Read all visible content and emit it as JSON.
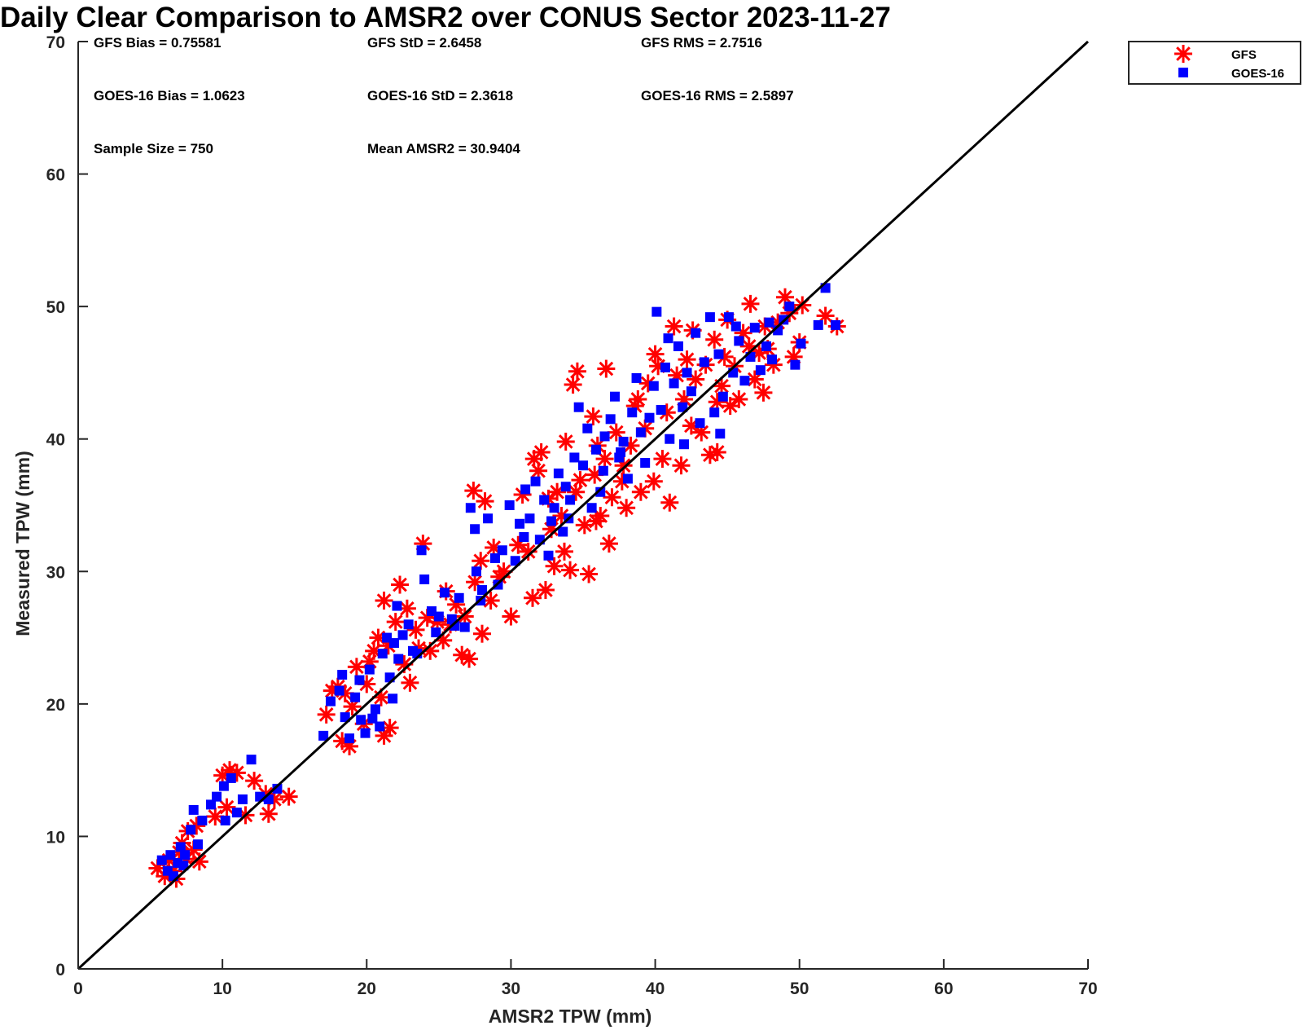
{
  "chart_data": {
    "type": "scatter",
    "title": "Daily Clear Comparison to AMSR2 over CONUS Sector 2023-11-27",
    "xlabel": "AMSR2 TPW (mm)",
    "ylabel": "Measured TPW (mm)",
    "xlim": [
      0,
      70
    ],
    "ylim": [
      0,
      70
    ],
    "xticks": [
      "0",
      "10",
      "20",
      "30",
      "40",
      "50",
      "60",
      "70"
    ],
    "yticks": [
      "0",
      "10",
      "20",
      "30",
      "40",
      "50",
      "60",
      "70"
    ],
    "grid": false,
    "reference_line": {
      "x": [
        0,
        70
      ],
      "y": [
        0,
        70
      ],
      "color": "#000000"
    },
    "legend": {
      "placement": "outside-top-right",
      "entries": [
        {
          "label": "GFS",
          "marker": "asterisk",
          "color": "#ff0000"
        },
        {
          "label": "GOES-16",
          "marker": "square",
          "color": "#0000ff"
        }
      ]
    },
    "stats": [
      [
        "GFS Bias = 0.75581",
        "GFS StD = 2.6458",
        "GFS RMS = 2.7516"
      ],
      [
        "GOES-16 Bias = 1.0623",
        "GOES-16 StD = 2.3618",
        "GOES-16 RMS = 2.5897"
      ],
      [
        "Sample Size = 750",
        "Mean AMSR2 = 30.9404"
      ]
    ],
    "series": [
      {
        "name": "GFS",
        "color": "#ff0000",
        "marker": "asterisk",
        "points": [
          [
            5.5,
            7.6
          ],
          [
            6.0,
            7.0
          ],
          [
            6.3,
            8.2
          ],
          [
            6.6,
            7.4
          ],
          [
            7.0,
            8.8
          ],
          [
            7.2,
            9.5
          ],
          [
            7.5,
            8.3
          ],
          [
            8.0,
            9.0
          ],
          [
            8.4,
            8.1
          ],
          [
            6.8,
            6.8
          ],
          [
            7.6,
            10.4
          ],
          [
            8.2,
            10.8
          ],
          [
            9.5,
            11.5
          ],
          [
            10.0,
            14.6
          ],
          [
            10.5,
            15.0
          ],
          [
            11.0,
            14.8
          ],
          [
            10.3,
            12.2
          ],
          [
            11.6,
            11.6
          ],
          [
            12.2,
            14.2
          ],
          [
            13.2,
            11.7
          ],
          [
            13.6,
            12.8
          ],
          [
            14.6,
            13.0
          ],
          [
            13.0,
            13.2
          ],
          [
            17.2,
            19.2
          ],
          [
            17.6,
            21.0
          ],
          [
            18.3,
            17.2
          ],
          [
            18.8,
            16.8
          ],
          [
            19.0,
            19.8
          ],
          [
            19.3,
            22.8
          ],
          [
            20.0,
            21.5
          ],
          [
            20.5,
            24.0
          ],
          [
            20.8,
            25.0
          ],
          [
            21.2,
            17.6
          ],
          [
            21.6,
            18.2
          ],
          [
            21.0,
            20.5
          ],
          [
            21.5,
            24.4
          ],
          [
            22.0,
            26.2
          ],
          [
            22.3,
            29.0
          ],
          [
            21.2,
            27.8
          ],
          [
            22.6,
            23.0
          ],
          [
            23.0,
            21.6
          ],
          [
            23.4,
            25.6
          ],
          [
            23.9,
            32.1
          ],
          [
            24.4,
            24.0
          ],
          [
            24.9,
            26.2
          ],
          [
            25.3,
            24.8
          ],
          [
            25.8,
            26.0
          ],
          [
            26.2,
            27.5
          ],
          [
            26.6,
            23.7
          ],
          [
            27.1,
            23.4
          ],
          [
            27.4,
            36.1
          ],
          [
            28.2,
            35.3
          ],
          [
            28.0,
            25.3
          ],
          [
            27.9,
            30.8
          ],
          [
            28.6,
            27.8
          ],
          [
            29.2,
            29.6
          ],
          [
            30.0,
            26.6
          ],
          [
            30.5,
            32.0
          ],
          [
            30.8,
            35.8
          ],
          [
            31.2,
            31.5
          ],
          [
            31.5,
            28.0
          ],
          [
            31.9,
            37.6
          ],
          [
            32.1,
            39.0
          ],
          [
            32.4,
            28.6
          ],
          [
            32.8,
            33.2
          ],
          [
            33.0,
            30.4
          ],
          [
            33.2,
            36.0
          ],
          [
            33.5,
            34.2
          ],
          [
            33.8,
            39.8
          ],
          [
            33.7,
            31.5
          ],
          [
            34.1,
            30.1
          ],
          [
            34.3,
            44.1
          ],
          [
            34.6,
            45.1
          ],
          [
            34.8,
            36.9
          ],
          [
            35.1,
            33.5
          ],
          [
            35.4,
            29.8
          ],
          [
            35.7,
            41.7
          ],
          [
            35.8,
            37.3
          ],
          [
            36.2,
            34.2
          ],
          [
            36.5,
            38.5
          ],
          [
            36.8,
            32.1
          ],
          [
            36.6,
            45.3
          ],
          [
            37.0,
            35.6
          ],
          [
            37.3,
            40.5
          ],
          [
            37.7,
            36.8
          ],
          [
            38.0,
            34.8
          ],
          [
            38.3,
            39.5
          ],
          [
            38.6,
            42.5
          ],
          [
            39.0,
            36.0
          ],
          [
            39.3,
            40.8
          ],
          [
            39.5,
            44.2
          ],
          [
            39.9,
            36.8
          ],
          [
            40.2,
            45.5
          ],
          [
            40.5,
            38.5
          ],
          [
            40.8,
            42.0
          ],
          [
            41.0,
            35.2
          ],
          [
            41.3,
            48.5
          ],
          [
            41.5,
            44.8
          ],
          [
            41.8,
            38.0
          ],
          [
            42.0,
            43.0
          ],
          [
            42.2,
            46.0
          ],
          [
            42.5,
            41.0
          ],
          [
            42.8,
            44.5
          ],
          [
            43.2,
            40.5
          ],
          [
            43.5,
            45.6
          ],
          [
            43.8,
            38.8
          ],
          [
            44.1,
            47.5
          ],
          [
            44.3,
            42.8
          ],
          [
            44.6,
            44.0
          ],
          [
            44.8,
            46.2
          ],
          [
            45.2,
            42.5
          ],
          [
            45.5,
            45.5
          ],
          [
            45.8,
            43.0
          ],
          [
            46.1,
            48.0
          ],
          [
            46.5,
            47.0
          ],
          [
            46.6,
            50.2
          ],
          [
            46.9,
            44.5
          ],
          [
            47.2,
            46.5
          ],
          [
            47.5,
            43.5
          ],
          [
            47.8,
            46.8
          ],
          [
            48.2,
            45.6
          ],
          [
            48.5,
            48.8
          ],
          [
            49.0,
            50.7
          ],
          [
            49.3,
            49.5
          ],
          [
            49.6,
            46.2
          ],
          [
            50.0,
            47.3
          ],
          [
            50.2,
            50.1
          ],
          [
            51.8,
            49.3
          ],
          [
            52.6,
            48.5
          ],
          [
            44.3,
            39.0
          ],
          [
            40.0,
            46.4
          ],
          [
            37.8,
            38.0
          ],
          [
            35.9,
            33.8
          ],
          [
            34.5,
            36.0
          ],
          [
            32.6,
            35.5
          ],
          [
            31.6,
            38.5
          ],
          [
            29.5,
            30.0
          ],
          [
            28.8,
            31.8
          ],
          [
            27.5,
            29.2
          ],
          [
            26.8,
            26.6
          ],
          [
            25.5,
            28.5
          ],
          [
            24.2,
            26.5
          ],
          [
            23.6,
            24.2
          ],
          [
            22.8,
            27.2
          ],
          [
            20.2,
            23.2
          ],
          [
            19.8,
            18.5
          ],
          [
            18.5,
            20.8
          ],
          [
            18.0,
            21.3
          ],
          [
            36.0,
            39.5
          ],
          [
            38.8,
            43.0
          ],
          [
            42.6,
            48.2
          ],
          [
            45.0,
            49.0
          ],
          [
            47.6,
            48.5
          ]
        ]
      },
      {
        "name": "GOES-16",
        "color": "#0000ff",
        "marker": "square",
        "points": [
          [
            5.8,
            8.2
          ],
          [
            6.2,
            7.4
          ],
          [
            6.4,
            8.6
          ],
          [
            6.9,
            8.0
          ],
          [
            7.1,
            9.2
          ],
          [
            7.4,
            8.6
          ],
          [
            7.8,
            10.5
          ],
          [
            8.0,
            12.0
          ],
          [
            8.6,
            11.2
          ],
          [
            6.6,
            7.0
          ],
          [
            7.3,
            7.8
          ],
          [
            8.3,
            9.4
          ],
          [
            9.2,
            12.4
          ],
          [
            9.6,
            13.0
          ],
          [
            10.1,
            13.8
          ],
          [
            10.6,
            14.4
          ],
          [
            10.2,
            11.2
          ],
          [
            11.4,
            12.8
          ],
          [
            12.0,
            15.8
          ],
          [
            13.2,
            12.8
          ],
          [
            13.8,
            13.6
          ],
          [
            12.6,
            13.0
          ],
          [
            11.0,
            11.8
          ],
          [
            17.0,
            17.6
          ],
          [
            17.5,
            20.2
          ],
          [
            18.1,
            21.0
          ],
          [
            18.5,
            19.0
          ],
          [
            18.8,
            17.4
          ],
          [
            19.2,
            20.5
          ],
          [
            19.5,
            21.8
          ],
          [
            19.9,
            17.8
          ],
          [
            20.2,
            22.6
          ],
          [
            20.6,
            19.6
          ],
          [
            21.1,
            23.8
          ],
          [
            20.9,
            18.3
          ],
          [
            21.4,
            25.0
          ],
          [
            21.6,
            22.0
          ],
          [
            21.9,
            24.6
          ],
          [
            22.1,
            27.4
          ],
          [
            22.5,
            25.2
          ],
          [
            22.9,
            26.0
          ],
          [
            23.2,
            24.0
          ],
          [
            23.8,
            31.6
          ],
          [
            24.0,
            29.4
          ],
          [
            24.5,
            27.0
          ],
          [
            25.0,
            26.6
          ],
          [
            25.4,
            28.4
          ],
          [
            25.9,
            26.4
          ],
          [
            26.4,
            28.0
          ],
          [
            26.8,
            25.8
          ],
          [
            27.2,
            34.8
          ],
          [
            27.6,
            30.0
          ],
          [
            27.5,
            33.2
          ],
          [
            28.0,
            28.6
          ],
          [
            28.4,
            34.0
          ],
          [
            28.9,
            31.0
          ],
          [
            29.4,
            31.6
          ],
          [
            29.9,
            35.0
          ],
          [
            30.3,
            30.8
          ],
          [
            30.6,
            33.6
          ],
          [
            31.0,
            36.2
          ],
          [
            31.3,
            34.0
          ],
          [
            31.7,
            36.8
          ],
          [
            32.0,
            32.4
          ],
          [
            32.3,
            35.4
          ],
          [
            32.6,
            31.2
          ],
          [
            33.0,
            34.8
          ],
          [
            33.3,
            37.4
          ],
          [
            33.6,
            33.0
          ],
          [
            33.8,
            36.4
          ],
          [
            34.1,
            35.4
          ],
          [
            34.4,
            38.6
          ],
          [
            34.7,
            42.4
          ],
          [
            35.0,
            38.0
          ],
          [
            35.3,
            40.8
          ],
          [
            35.6,
            34.8
          ],
          [
            35.9,
            39.2
          ],
          [
            36.2,
            36.0
          ],
          [
            36.5,
            40.2
          ],
          [
            36.9,
            41.5
          ],
          [
            37.2,
            43.2
          ],
          [
            37.5,
            38.6
          ],
          [
            37.8,
            39.8
          ],
          [
            38.1,
            37.0
          ],
          [
            38.4,
            42.0
          ],
          [
            38.7,
            44.6
          ],
          [
            39.0,
            40.5
          ],
          [
            39.3,
            38.2
          ],
          [
            39.6,
            41.6
          ],
          [
            39.9,
            44.0
          ],
          [
            40.1,
            49.6
          ],
          [
            40.4,
            42.2
          ],
          [
            40.7,
            45.4
          ],
          [
            41.0,
            40.0
          ],
          [
            41.3,
            44.2
          ],
          [
            41.6,
            47.0
          ],
          [
            41.9,
            42.4
          ],
          [
            42.2,
            45.0
          ],
          [
            42.5,
            43.6
          ],
          [
            42.8,
            48.0
          ],
          [
            43.1,
            41.2
          ],
          [
            43.4,
            45.8
          ],
          [
            43.8,
            49.2
          ],
          [
            44.1,
            42.0
          ],
          [
            44.4,
            46.4
          ],
          [
            44.7,
            43.2
          ],
          [
            45.1,
            49.2
          ],
          [
            45.4,
            45.0
          ],
          [
            45.8,
            47.4
          ],
          [
            46.2,
            44.4
          ],
          [
            46.6,
            46.2
          ],
          [
            46.9,
            48.4
          ],
          [
            47.3,
            45.2
          ],
          [
            47.7,
            47.0
          ],
          [
            48.1,
            46.0
          ],
          [
            48.5,
            48.2
          ],
          [
            48.9,
            49.0
          ],
          [
            49.3,
            50.0
          ],
          [
            49.7,
            45.6
          ],
          [
            50.1,
            47.2
          ],
          [
            51.8,
            51.4
          ],
          [
            52.5,
            48.6
          ],
          [
            51.3,
            48.6
          ],
          [
            44.5,
            40.4
          ],
          [
            40.9,
            47.6
          ],
          [
            37.6,
            39.0
          ],
          [
            36.4,
            37.6
          ],
          [
            34.0,
            34.0
          ],
          [
            32.8,
            33.8
          ],
          [
            30.9,
            32.6
          ],
          [
            29.1,
            29.0
          ],
          [
            27.9,
            27.8
          ],
          [
            26.1,
            25.9
          ],
          [
            24.8,
            25.4
          ],
          [
            23.5,
            23.8
          ],
          [
            22.2,
            23.4
          ],
          [
            21.8,
            20.4
          ],
          [
            20.4,
            18.9
          ],
          [
            19.6,
            18.8
          ],
          [
            18.3,
            22.2
          ],
          [
            42.0,
            39.6
          ],
          [
            45.6,
            48.5
          ],
          [
            47.9,
            48.8
          ]
        ]
      }
    ]
  }
}
